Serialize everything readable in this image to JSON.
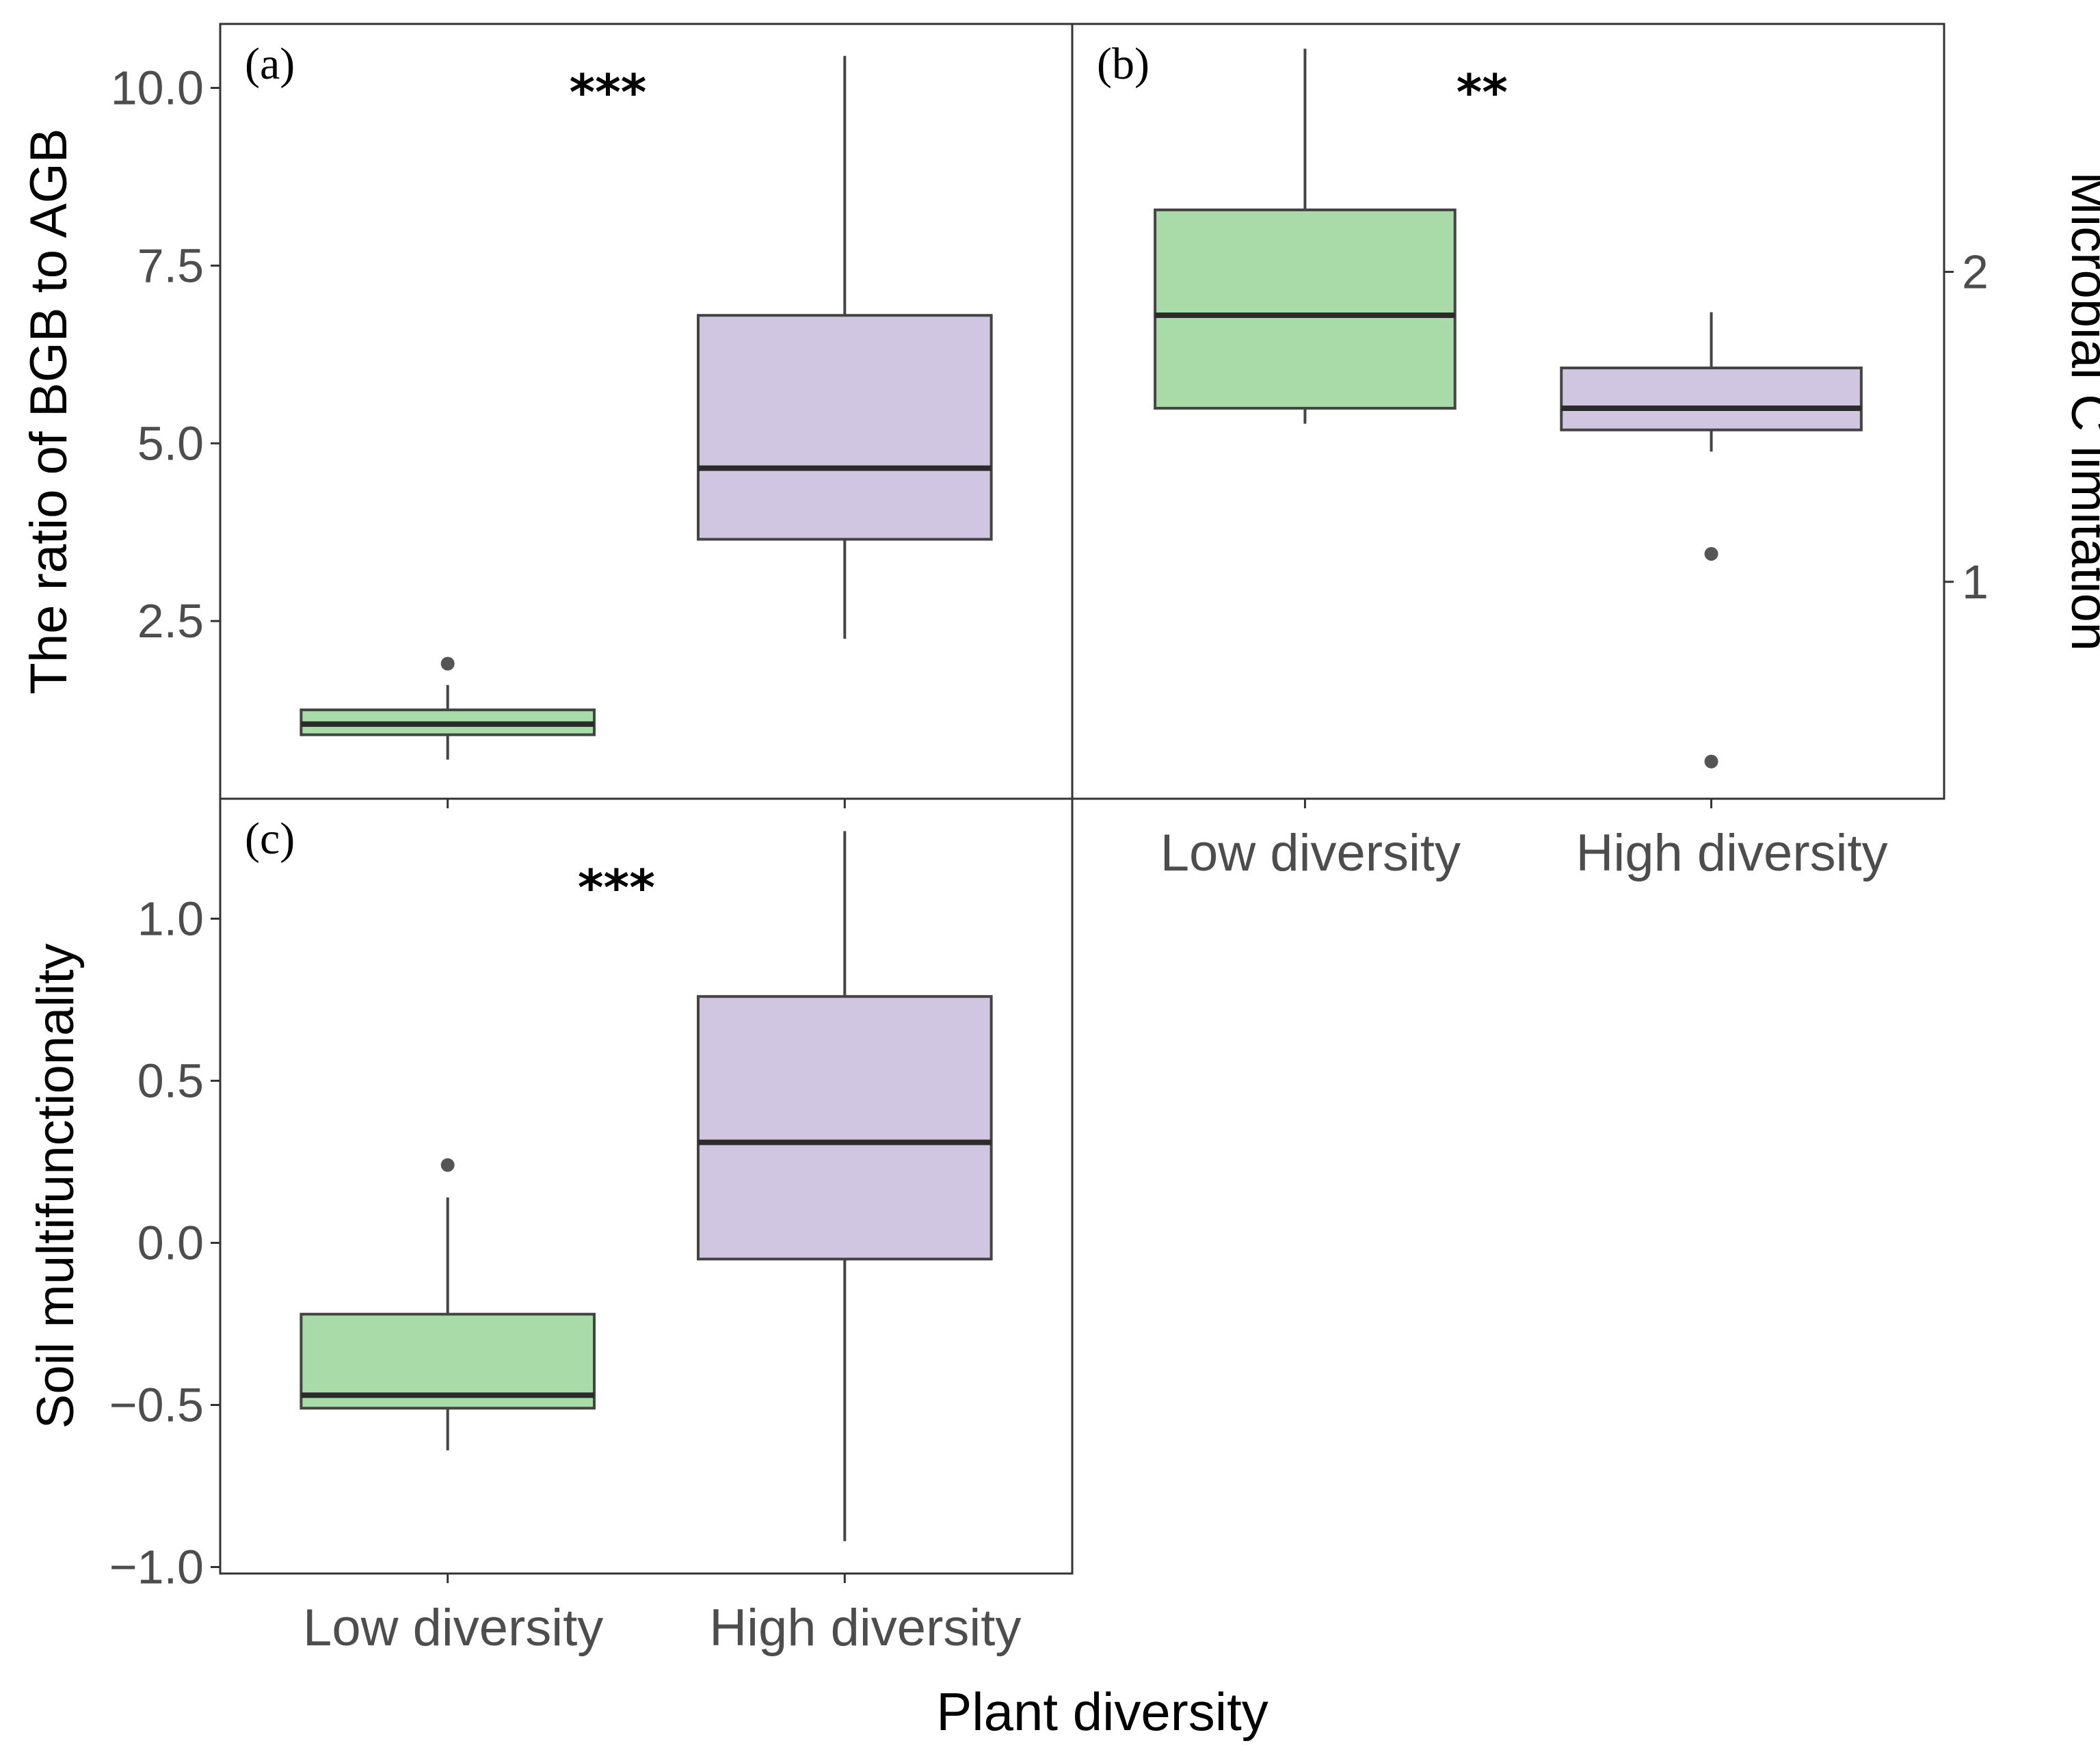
{
  "figure": {
    "xlabel": "Plant diversity"
  },
  "chart_data": [
    {
      "type": "boxplot",
      "tag": "(a)",
      "significance": "***",
      "ylabel": "The ratio of BGB to AGB",
      "ylabel_side": "left",
      "categories": [
        "Low diversity",
        "High diversity"
      ],
      "show_xticklabels": false,
      "ylim": [
        0.0,
        10.9
      ],
      "yticks": [
        2.5,
        5.0,
        7.5,
        10.0
      ],
      "ytick_labels": [
        "2.5",
        "5.0",
        "7.5",
        "10.0"
      ],
      "grid": false,
      "boxes": [
        {
          "name": "Low diversity",
          "color": "#a8dba8",
          "whisker_low": 0.55,
          "q1": 0.9,
          "median": 1.05,
          "q3": 1.25,
          "whisker_high": 1.6,
          "outliers": [
            1.9
          ]
        },
        {
          "name": "High diversity",
          "color": "#d0c6e1",
          "whisker_low": 2.25,
          "q1": 3.65,
          "median": 4.65,
          "q3": 6.8,
          "whisker_high": 10.45,
          "outliers": []
        }
      ]
    },
    {
      "type": "boxplot",
      "tag": "(b)",
      "significance": "**",
      "ylabel": "Microbial C limitation",
      "ylabel_side": "right",
      "categories": [
        "Low diversity",
        "High diversity"
      ],
      "show_xticklabels": true,
      "ylim": [
        0.3,
        2.8
      ],
      "yticks": [
        1,
        2
      ],
      "ytick_labels": [
        "1",
        "2"
      ],
      "grid": false,
      "boxes": [
        {
          "name": "Low diversity",
          "color": "#a8dba8",
          "whisker_low": 1.51,
          "q1": 1.56,
          "median": 1.86,
          "q3": 2.2,
          "whisker_high": 2.72,
          "outliers": []
        },
        {
          "name": "High diversity",
          "color": "#d0c6e1",
          "whisker_low": 1.42,
          "q1": 1.49,
          "median": 1.56,
          "q3": 1.69,
          "whisker_high": 1.87,
          "outliers": [
            1.09,
            0.42
          ]
        }
      ]
    },
    {
      "type": "boxplot",
      "tag": "(c)",
      "significance": "***",
      "ylabel": "Soil multifunctionality",
      "ylabel_side": "left",
      "categories": [
        "Low diversity",
        "High diversity"
      ],
      "show_xticklabels": true,
      "ylim": [
        -1.02,
        1.37
      ],
      "yticks": [
        -1.0,
        -0.5,
        0.0,
        0.5,
        1.0
      ],
      "ytick_labels": [
        "−1.0",
        "−0.5",
        "0.0",
        "0.5",
        "1.0"
      ],
      "grid": false,
      "boxes": [
        {
          "name": "Low diversity",
          "color": "#a8dba8",
          "whisker_low": -0.64,
          "q1": -0.51,
          "median": -0.47,
          "q3": -0.22,
          "whisker_high": 0.14,
          "outliers": [
            0.24
          ]
        },
        {
          "name": "High diversity",
          "color": "#d0c6e1",
          "whisker_low": -0.92,
          "q1": -0.05,
          "median": 0.31,
          "q3": 0.76,
          "whisker_high": 1.27,
          "outliers": []
        }
      ]
    }
  ]
}
